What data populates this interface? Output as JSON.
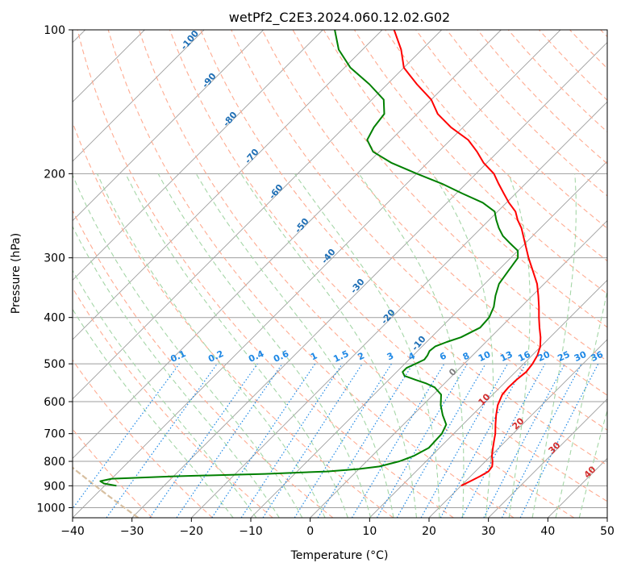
{
  "chart_data": {
    "type": "line",
    "title": "wetPf2_C2E3.2024.060.12.02.G02",
    "xlabel": "Temperature (°C)",
    "ylabel": "Pressure (hPa)",
    "xlim": [
      -40,
      50
    ],
    "ylim": [
      1050,
      100
    ],
    "x_ticks": [
      "−40",
      "−30",
      "−20",
      "−10",
      "0",
      "10",
      "20",
      "30",
      "40",
      "50"
    ],
    "x_tick_values": [
      -40,
      -30,
      -20,
      -10,
      0,
      10,
      20,
      30,
      40,
      50
    ],
    "y_ticks": [
      "100",
      "200",
      "300",
      "400",
      "500",
      "600",
      "700",
      "800",
      "900",
      "1000"
    ],
    "y_tick_values": [
      100,
      200,
      300,
      400,
      500,
      600,
      700,
      800,
      900,
      1000
    ],
    "grid": true,
    "series": [
      {
        "name": "Temperature",
        "color": "#ff0000",
        "points": [
          [
            900,
            20.0
          ],
          [
            880,
            20.8
          ],
          [
            860,
            21.6
          ],
          [
            840,
            22.2
          ],
          [
            820,
            22.0
          ],
          [
            800,
            21.2
          ],
          [
            780,
            20.2
          ],
          [
            750,
            19.0
          ],
          [
            720,
            17.8
          ],
          [
            700,
            17.0
          ],
          [
            670,
            15.5
          ],
          [
            640,
            14.0
          ],
          [
            610,
            12.6
          ],
          [
            580,
            11.6
          ],
          [
            560,
            11.4
          ],
          [
            540,
            11.5
          ],
          [
            520,
            11.8
          ],
          [
            500,
            11.5
          ],
          [
            480,
            10.9
          ],
          [
            460,
            9.9
          ],
          [
            440,
            8.4
          ],
          [
            420,
            6.6
          ],
          [
            400,
            4.8
          ],
          [
            380,
            3.0
          ],
          [
            360,
            1.0
          ],
          [
            340,
            -1.2
          ],
          [
            320,
            -4.0
          ],
          [
            300,
            -7.0
          ],
          [
            280,
            -10.0
          ],
          [
            260,
            -13.2
          ],
          [
            250,
            -15.2
          ],
          [
            240,
            -17.0
          ],
          [
            230,
            -19.6
          ],
          [
            220,
            -22.0
          ],
          [
            210,
            -24.5
          ],
          [
            200,
            -27.0
          ],
          [
            190,
            -30.5
          ],
          [
            180,
            -33.5
          ],
          [
            170,
            -37.0
          ],
          [
            160,
            -42.0
          ],
          [
            150,
            -46.5
          ],
          [
            140,
            -50.0
          ],
          [
            130,
            -55.0
          ],
          [
            120,
            -60.0
          ],
          [
            110,
            -63.5
          ],
          [
            100,
            -68.0
          ]
        ]
      },
      {
        "name": "Dewpoint",
        "color": "#008000",
        "points": [
          [
            900,
            -38.0
          ],
          [
            890,
            -40.5
          ],
          [
            880,
            -41.5
          ],
          [
            870,
            -40.0
          ],
          [
            860,
            -30.0
          ],
          [
            850,
            -15.0
          ],
          [
            840,
            -5.0
          ],
          [
            830,
            0.0
          ],
          [
            820,
            3.0
          ],
          [
            800,
            5.5
          ],
          [
            780,
            7.0
          ],
          [
            750,
            8.2
          ],
          [
            700,
            8.0
          ],
          [
            670,
            7.2
          ],
          [
            640,
            5.0
          ],
          [
            610,
            3.0
          ],
          [
            580,
            1.3
          ],
          [
            560,
            -1.0
          ],
          [
            550,
            -3.0
          ],
          [
            540,
            -5.5
          ],
          [
            530,
            -8.0
          ],
          [
            520,
            -9.0
          ],
          [
            510,
            -9.0
          ],
          [
            500,
            -8.2
          ],
          [
            490,
            -7.4
          ],
          [
            480,
            -7.6
          ],
          [
            470,
            -8.0
          ],
          [
            460,
            -7.8
          ],
          [
            450,
            -6.6
          ],
          [
            440,
            -5.0
          ],
          [
            420,
            -3.4
          ],
          [
            400,
            -3.6
          ],
          [
            380,
            -4.6
          ],
          [
            360,
            -6.2
          ],
          [
            340,
            -7.6
          ],
          [
            320,
            -8.2
          ],
          [
            300,
            -8.8
          ],
          [
            290,
            -10.0
          ],
          [
            280,
            -12.5
          ],
          [
            270,
            -15.0
          ],
          [
            260,
            -17.0
          ],
          [
            250,
            -18.8
          ],
          [
            240,
            -20.5
          ],
          [
            230,
            -24.0
          ],
          [
            220,
            -29.0
          ],
          [
            210,
            -34.0
          ],
          [
            200,
            -40.0
          ],
          [
            190,
            -46.0
          ],
          [
            180,
            -51.0
          ],
          [
            170,
            -54.0
          ],
          [
            160,
            -55.0
          ],
          [
            150,
            -55.5
          ],
          [
            140,
            -58.0
          ],
          [
            130,
            -63.0
          ],
          [
            120,
            -69.0
          ],
          [
            110,
            -74.0
          ],
          [
            100,
            -78.0
          ]
        ]
      }
    ],
    "dry_adiabat_labels": [
      "-100",
      "-90",
      "-80",
      "-70",
      "-60",
      "-50",
      "-40",
      "-30",
      "-20",
      "-10"
    ],
    "dry_adiabat_label_values": [
      -100,
      -90,
      -80,
      -70,
      -60,
      -50,
      -40,
      -30,
      -20,
      -10
    ],
    "mixing_ratio_labels": [
      "0.1",
      "0.2",
      "0.4",
      "0.6",
      "1",
      "1.5",
      "2",
      "3",
      "4",
      "6",
      "8",
      "10",
      "13",
      "16",
      "20",
      "25",
      "30",
      "36"
    ],
    "mixing_ratio_values": [
      0.1,
      0.2,
      0.4,
      0.6,
      1,
      1.5,
      2,
      3,
      4,
      6,
      8,
      10,
      13,
      16,
      20,
      25,
      30,
      36
    ],
    "moist_adiabat_labels": [
      "0",
      "10",
      "20",
      "30",
      "40"
    ],
    "moist_adiabat_values": [
      0,
      10,
      20,
      30,
      40
    ],
    "colors": {
      "isotherm": "#9e9e9e",
      "isobar": "#9e9e9e",
      "dry_adiabat": "#ffab91",
      "moist_adiabat": "#a5d6a7",
      "mixing_ratio": "#1e88e5",
      "dry_label": "#1f6fb5",
      "moist_label_zero": "#808080",
      "moist_label": "#d32f2f",
      "tan_curve": "#d7bfa0"
    }
  }
}
